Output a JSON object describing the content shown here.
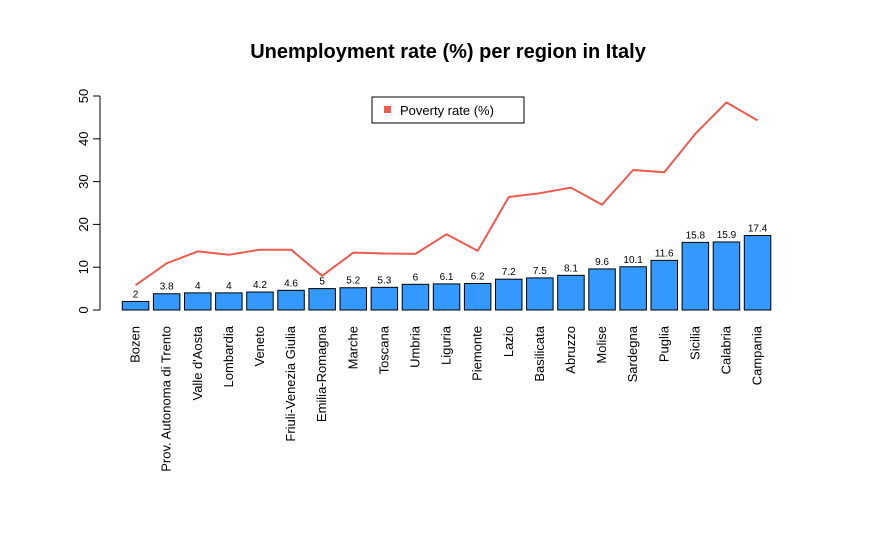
{
  "chart_data": {
    "type": "bar",
    "title": "Unemployment rate (%) per region in Italy",
    "xlabel": "",
    "ylabel": "",
    "ylim": [
      0,
      50
    ],
    "yticks": [
      0,
      10,
      20,
      30,
      40,
      50
    ],
    "categories": [
      "Bozen",
      "Prov. Autonoma di Trento",
      "Valle d'Aosta",
      "Lombardia",
      "Veneto",
      "Friuli-Venezia Giulia",
      "Emilia-Romagna",
      "Marche",
      "Toscana",
      "Umbria",
      "Liguria",
      "Piemonte",
      "Lazio",
      "Basilicata",
      "Abruzzo",
      "Molise",
      "Sardegna",
      "Puglia",
      "Sicilia",
      "Calabria",
      "Campania"
    ],
    "series": [
      {
        "name": "Unemployment rate (%)",
        "kind": "bar",
        "color": "#3399ff",
        "values": [
          2,
          3.8,
          4,
          4,
          4.2,
          4.6,
          5,
          5.2,
          5.3,
          6,
          6.1,
          6.2,
          7.2,
          7.5,
          8.1,
          9.6,
          10.1,
          11.6,
          15.8,
          15.9,
          17.4
        ],
        "labels": [
          "2",
          "3.8",
          "4",
          "4",
          "4.2",
          "4.6",
          "5",
          "5.2",
          "5.3",
          "6",
          "6.1",
          "6.2",
          "7.2",
          "7.5",
          "8.1",
          "9.6",
          "10.1",
          "11.6",
          "15.8",
          "15.9",
          "17.4"
        ]
      },
      {
        "name": "Poverty rate (%)",
        "kind": "line",
        "color": "#ef5a4f",
        "values": [
          5.8,
          10.9,
          13.7,
          12.9,
          14.1,
          14.1,
          8.0,
          13.4,
          13.2,
          13.1,
          17.7,
          13.8,
          26.4,
          27.3,
          28.6,
          24.6,
          32.7,
          32.2,
          41.2,
          48.5,
          44.3
        ]
      }
    ],
    "legend": {
      "position": "top-center",
      "entries": [
        "Poverty rate (%)"
      ]
    }
  }
}
